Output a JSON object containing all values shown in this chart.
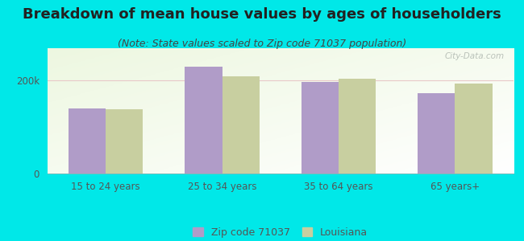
{
  "title": "Breakdown of mean house values by ages of householders",
  "subtitle": "(Note: State values scaled to Zip code 71037 population)",
  "categories": [
    "15 to 24 years",
    "25 to 34 years",
    "35 to 64 years",
    "65 years+"
  ],
  "zip_values": [
    140000,
    230000,
    198000,
    173000
  ],
  "la_values": [
    138000,
    210000,
    205000,
    193000
  ],
  "zip_color": "#b09cc8",
  "la_color": "#c8cfa0",
  "bg_color": "#00e8e8",
  "ylim": [
    0,
    270000
  ],
  "yticks": [
    0,
    200000
  ],
  "ytick_labels": [
    "0",
    "200k"
  ],
  "legend_zip": "Zip code 71037",
  "legend_la": "Louisiana",
  "bar_width": 0.32,
  "title_fontsize": 13,
  "subtitle_fontsize": 9,
  "tick_fontsize": 8.5,
  "legend_fontsize": 9,
  "title_color": "#222222",
  "subtitle_color": "#444444",
  "tick_color": "#555555"
}
